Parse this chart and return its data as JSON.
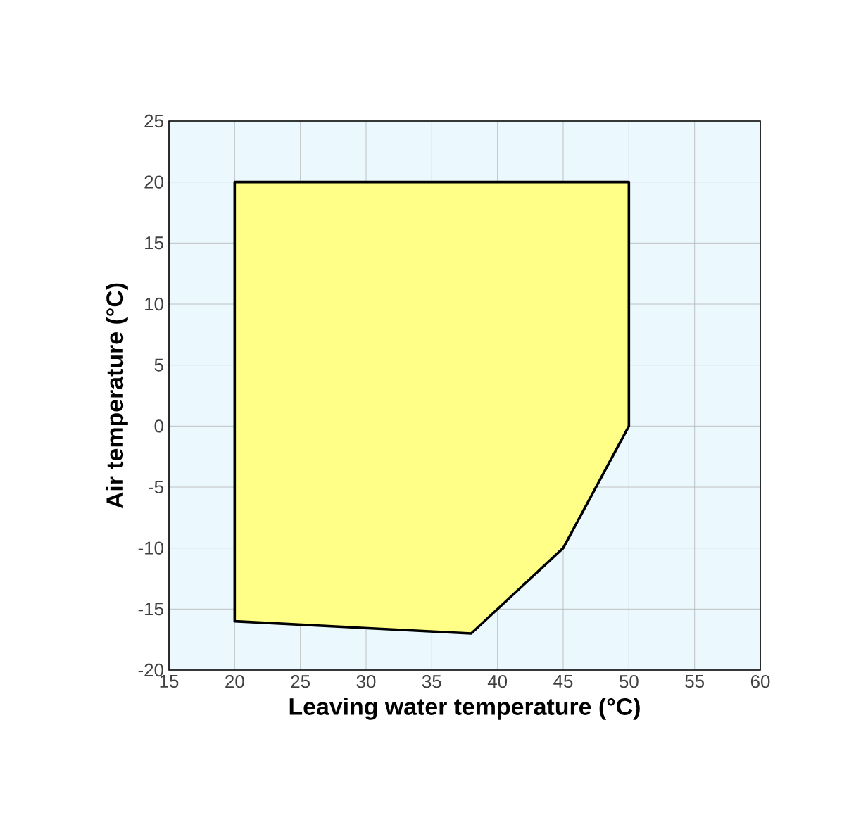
{
  "chart_data": {
    "type": "area",
    "xlabel": "Leaving water temperature (°C)",
    "ylabel": "Air temperature (°C)",
    "series": [
      {
        "color": "#ffff88",
        "x": [
          20,
          50,
          50,
          45,
          38,
          20
        ],
        "values": [
          20,
          20,
          0,
          -10,
          -17,
          -16
        ]
      }
    ],
    "xlim": [
      15,
      60
    ],
    "ylim": [
      -20,
      25
    ],
    "xticks": [
      15,
      20,
      25,
      30,
      35,
      40,
      45,
      50,
      55,
      60
    ],
    "yticks": [
      -20,
      -15,
      -10,
      -5,
      0,
      5,
      10,
      15,
      20,
      25
    ],
    "grid": true
  }
}
